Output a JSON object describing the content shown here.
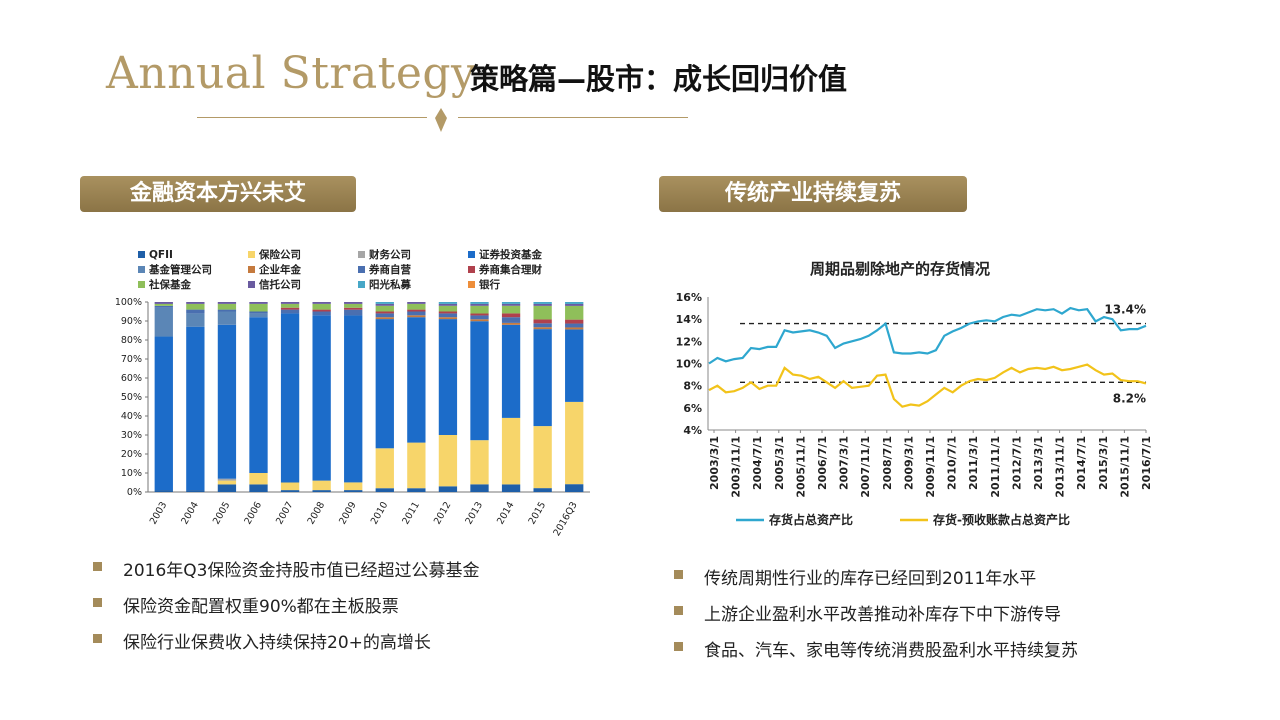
{
  "header": {
    "brand": "Annual Strategy",
    "title": "策略篇—股市：成长回归价值"
  },
  "colors": {
    "gold": "#b39a67",
    "label_bg": "#9c8453"
  },
  "left": {
    "label": "金融资本方兴未艾",
    "bullets": [
      "2016年Q3保险资金持股市值已经超过公募基金",
      "保险资金配置权重90%都在主板股票",
      "保险行业保费收入持续保持20+的高增长"
    ]
  },
  "right": {
    "label": "传统产业持续复苏",
    "bullets": [
      "传统周期性行业的库存已经回到2011年水平",
      "上游企业盈利水平改善推动补库存下中下游传导",
      "食品、汽车、家电等传统消费股盈利水平持续复苏"
    ]
  },
  "chart_data": [
    {
      "type": "bar",
      "stacked": true,
      "title": "",
      "categories": [
        "2003",
        "2004",
        "2005",
        "2006",
        "2007",
        "2008",
        "2009",
        "2010",
        "2011",
        "2012",
        "2013",
        "2014",
        "2015",
        "2016Q3"
      ],
      "y_ticks": [
        "0%",
        "10%",
        "20%",
        "30%",
        "40%",
        "50%",
        "60%",
        "70%",
        "80%",
        "90%",
        "100%"
      ],
      "ylim": [
        0,
        100
      ],
      "legend": [
        "QFII",
        "保险公司",
        "财务公司",
        "证券投资基金",
        "基金管理公司",
        "企业年金",
        "券商自营",
        "券商集合理财",
        "社保基金",
        "信托公司",
        "阳光私募",
        "银行"
      ],
      "series": [
        {
          "name": "QFII",
          "color": "#1f5fa8",
          "values": [
            1,
            1,
            4,
            4,
            1,
            1,
            1,
            2,
            2,
            3,
            4,
            4,
            2,
            4
          ]
        },
        {
          "name": "保险公司",
          "color": "#f7d56a",
          "values": [
            0,
            0,
            2,
            6,
            4,
            5,
            4,
            21,
            24,
            27,
            23,
            35,
            32,
            42
          ]
        },
        {
          "name": "财务公司",
          "color": "#a6a6a6",
          "values": [
            0,
            0,
            1,
            0,
            0,
            0,
            0,
            0,
            0,
            0,
            0,
            0,
            0,
            0
          ]
        },
        {
          "name": "证券投资基金",
          "color": "#1c6cc9",
          "values": [
            80,
            86,
            81,
            82,
            89,
            87,
            87,
            68,
            66,
            61,
            62,
            49,
            50,
            37
          ]
        },
        {
          "name": "基金管理公司",
          "color": "#5b86b6",
          "values": [
            15,
            7,
            7,
            2,
            0,
            0,
            0,
            0,
            0,
            0,
            0,
            0,
            0,
            0
          ]
        },
        {
          "name": "企业年金",
          "color": "#c57a3e",
          "values": [
            0,
            0,
            0,
            0,
            0,
            0,
            0,
            1,
            1,
            1,
            1,
            1,
            1,
            1
          ]
        },
        {
          "name": "券商自营",
          "color": "#4a6fb0",
          "values": [
            1,
            2,
            1,
            1,
            2,
            2,
            3,
            2,
            2,
            2,
            2,
            3,
            2,
            2
          ]
        },
        {
          "name": "券商集合理财",
          "color": "#b0414d",
          "values": [
            0,
            0,
            0,
            0,
            1,
            1,
            1,
            1,
            1,
            1,
            1,
            2,
            2,
            2
          ]
        },
        {
          "name": "社保基金",
          "color": "#8fbf5a",
          "values": [
            1,
            3,
            3,
            4,
            2,
            3,
            2,
            3,
            3,
            3,
            4,
            4,
            7,
            7
          ]
        },
        {
          "name": "信托公司",
          "color": "#6a5ba0",
          "values": [
            1,
            1,
            1,
            1,
            1,
            1,
            1,
            1,
            1,
            1,
            1,
            1,
            1,
            1
          ]
        },
        {
          "name": "阳光私募",
          "color": "#47a7c7",
          "values": [
            0,
            0,
            0,
            0,
            0,
            0,
            0,
            1,
            0,
            1,
            1,
            1,
            1,
            1
          ]
        },
        {
          "name": "银行",
          "color": "#ee8e3a",
          "values": [
            0,
            0,
            0,
            0,
            0,
            0,
            0,
            0,
            0,
            0,
            0,
            0,
            0,
            0
          ]
        }
      ]
    },
    {
      "type": "line",
      "title": "周期品剔除地产的存货情况",
      "x_ticks": [
        "2003/3/1",
        "2003/11/1",
        "2004/7/1",
        "2005/3/1",
        "2005/11/1",
        "2006/7/1",
        "2007/3/1",
        "2007/11/1",
        "2008/7/1",
        "2009/3/1",
        "2009/11/1",
        "2010/7/1",
        "2011/3/1",
        "2011/11/1",
        "2012/7/1",
        "2013/3/1",
        "2013/11/1",
        "2014/7/1",
        "2015/3/1",
        "2015/11/1",
        "2016/7/1"
      ],
      "y_ticks": [
        "4%",
        "6%",
        "8%",
        "10%",
        "12%",
        "14%",
        "16%"
      ],
      "ylim": [
        4,
        16
      ],
      "reference_lines": [
        13.6,
        8.3
      ],
      "annotations": [
        "13.4%",
        "8.2%"
      ],
      "series": [
        {
          "name": "存货占总资产比",
          "color": "#2ea7cf",
          "values": [
            10.0,
            10.5,
            10.2,
            10.4,
            10.5,
            11.4,
            11.3,
            11.5,
            11.5,
            13.0,
            12.8,
            12.9,
            13.0,
            12.8,
            12.5,
            11.4,
            11.8,
            12.0,
            12.2,
            12.5,
            13.0,
            13.6,
            11.0,
            10.9,
            10.9,
            11.0,
            10.9,
            11.2,
            12.5,
            12.9,
            13.2,
            13.6,
            13.8,
            13.9,
            13.8,
            14.2,
            14.4,
            14.3,
            14.6,
            14.9,
            14.8,
            14.9,
            14.5,
            15.0,
            14.8,
            14.9,
            13.8,
            14.2,
            14.0,
            13.0,
            13.1,
            13.1,
            13.4
          ]
        },
        {
          "name": "存货-预收账款占总资产比",
          "color": "#f2c31a",
          "values": [
            7.6,
            8.0,
            7.4,
            7.5,
            7.8,
            8.3,
            7.7,
            8.0,
            8.0,
            9.6,
            9.0,
            8.9,
            8.6,
            8.8,
            8.3,
            7.8,
            8.4,
            7.8,
            7.9,
            8.0,
            8.9,
            9.0,
            6.8,
            6.1,
            6.3,
            6.2,
            6.6,
            7.2,
            7.8,
            7.4,
            8.0,
            8.4,
            8.6,
            8.5,
            8.7,
            9.2,
            9.6,
            9.2,
            9.5,
            9.6,
            9.5,
            9.7,
            9.4,
            9.5,
            9.7,
            9.9,
            9.4,
            9.0,
            9.1,
            8.5,
            8.4,
            8.4,
            8.2
          ]
        }
      ]
    }
  ]
}
